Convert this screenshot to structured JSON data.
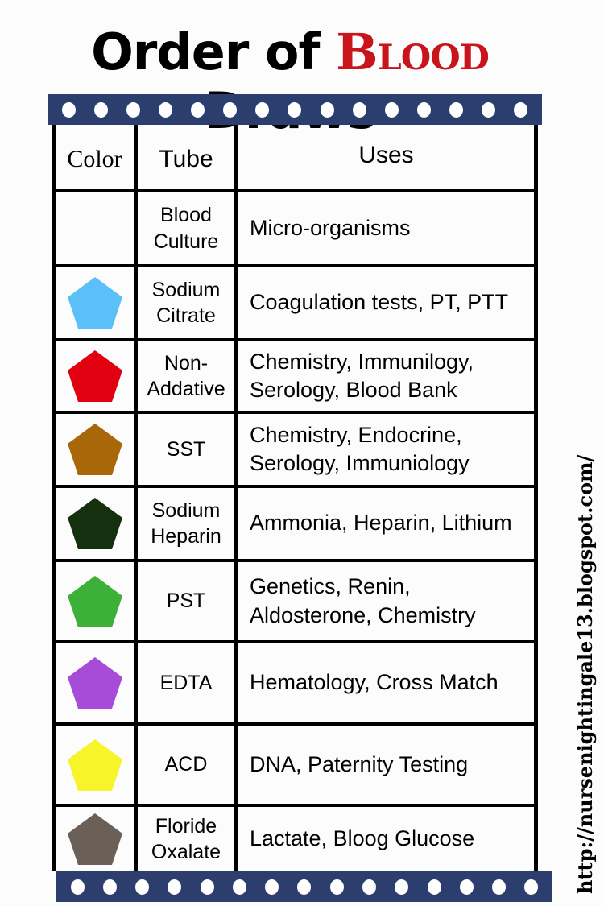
{
  "title": {
    "pre": "Order of ",
    "highlight": "Blood",
    "post": " Draws",
    "highlight_color": "#c8141a"
  },
  "headers": {
    "color": "Color",
    "tube": "Tube",
    "uses": "Uses"
  },
  "rows": [
    {
      "color": null,
      "tube": "Blood Culture",
      "uses": "Micro-organisms"
    },
    {
      "color": "#5bc0f8",
      "tube": "Sodium Citrate",
      "uses": "Coagulation tests, PT, PTT"
    },
    {
      "color": "#e0000f",
      "tube": "Non-Addative",
      "uses": "Chemistry, Immunilogy, Serology, Blood Bank"
    },
    {
      "color": "#a8680a",
      "tube": "SST",
      "uses": "Chemistry, Endocrine, Serology, Immuniology"
    },
    {
      "color": "#15300f",
      "tube": "Sodium Heparin",
      "uses": "Ammonia, Heparin, Lithium"
    },
    {
      "color": "#3db03a",
      "tube": "PST",
      "uses": "Genetics, Renin, Aldosterone, Chemistry"
    },
    {
      "color": "#a64cd8",
      "tube": "EDTA",
      "uses": "Hematology, Cross Match"
    },
    {
      "color": "#f8f42a",
      "tube": "ACD",
      "uses": "DNA, Paternity Testing"
    },
    {
      "color": "#6a6058",
      "tube": "Floride Oxalate",
      "uses": "Lactate, Bloog Glucose"
    }
  ],
  "url": "http://nursenightingale13.blogspot.com/",
  "film_color": "#2c3e6e"
}
